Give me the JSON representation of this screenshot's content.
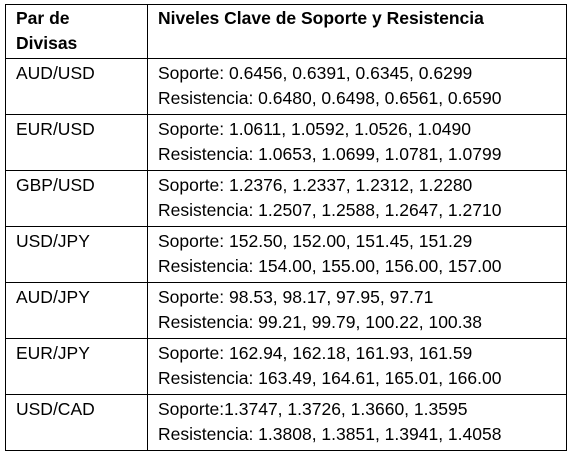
{
  "table": {
    "headers": {
      "pair_line1": "Par de",
      "pair_line2": "Divisas",
      "levels": "Niveles Clave de Soporte y Resistencia"
    },
    "rows": [
      {
        "pair": "AUD/USD",
        "support": "Soporte: 0.6456, 0.6391, 0.6345, 0.6299",
        "resistance": "Resistencia: 0.6480, 0.6498, 0.6561, 0.6590"
      },
      {
        "pair": "EUR/USD",
        "support": "Soporte: 1.0611, 1.0592, 1.0526, 1.0490",
        "resistance": "Resistencia: 1.0653, 1.0699, 1.0781, 1.0799"
      },
      {
        "pair": "GBP/USD",
        "support": "Soporte: 1.2376, 1.2337, 1.2312, 1.2280",
        "resistance": "Resistencia: 1.2507, 1.2588, 1.2647, 1.2710"
      },
      {
        "pair": "USD/JPY",
        "support": "Soporte: 152.50, 152.00, 151.45, 151.29",
        "resistance": "Resistencia: 154.00, 155.00, 156.00, 157.00"
      },
      {
        "pair": "AUD/JPY",
        "support": "Soporte: 98.53, 98.17, 97.95, 97.71",
        "resistance": "Resistencia: 99.21, 99.79, 100.22, 100.38"
      },
      {
        "pair": "EUR/JPY",
        "support": "Soporte: 162.94, 162.18, 161.93, 161.59",
        "resistance": "Resistencia: 163.49, 164.61, 165.01, 166.00"
      },
      {
        "pair": "USD/CAD",
        "support": "Soporte:1.3747, 1.3726, 1.3660, 1.3595",
        "resistance": "Resistencia: 1.3808, 1.3851, 1.3941, 1.4058"
      }
    ]
  }
}
